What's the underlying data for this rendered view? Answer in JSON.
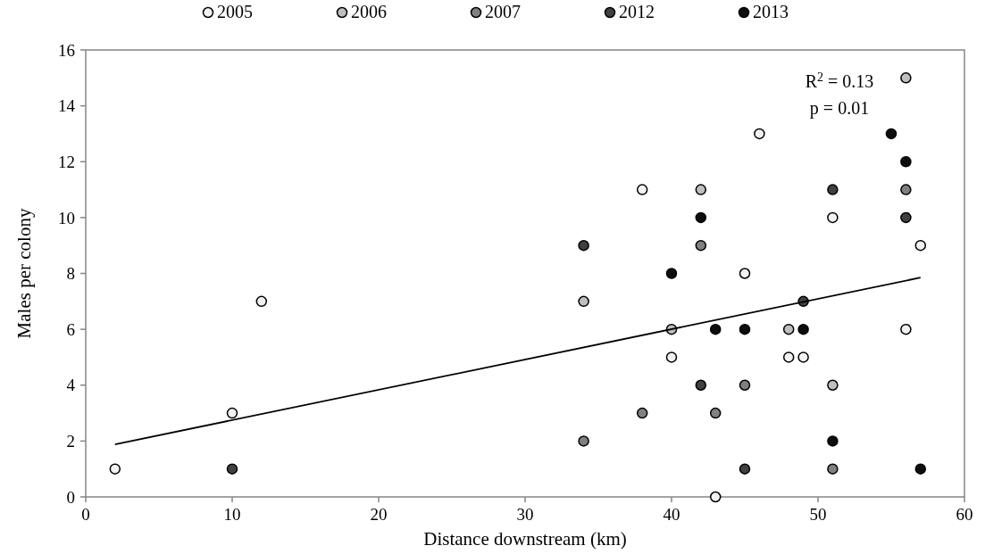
{
  "chart_data": {
    "type": "scatter",
    "xlabel": "Distance downstream (km)",
    "ylabel": "Males per colony",
    "xlim": [
      0,
      60
    ],
    "xticks": [
      0,
      10,
      20,
      30,
      40,
      50,
      60
    ],
    "ylim": [
      0,
      16
    ],
    "yticks": [
      0,
      2,
      4,
      6,
      8,
      10,
      12,
      14,
      16
    ],
    "grid": false,
    "legend": "top",
    "marker": "circle",
    "annotations": [
      "R$^{2}$ = 0.13",
      "p  = 0.01"
    ],
    "series": [
      {
        "name": "2005",
        "color": "#f2f2f2",
        "x": [
          2,
          10,
          12,
          38,
          40,
          43,
          45,
          46,
          48,
          49,
          51,
          56,
          57
        ],
        "values": [
          1,
          3,
          7,
          11,
          5,
          0,
          8,
          13,
          5,
          5,
          10,
          6,
          9
        ]
      },
      {
        "name": "2006",
        "color": "#bfbfbf",
        "x": [
          34,
          40,
          42,
          48,
          51,
          56
        ],
        "values": [
          7,
          6,
          11,
          6,
          4,
          15
        ]
      },
      {
        "name": "2007",
        "color": "#808080",
        "x": [
          34,
          38,
          42,
          43,
          45,
          51,
          56
        ],
        "values": [
          2,
          3,
          9,
          3,
          4,
          1,
          11
        ]
      },
      {
        "name": "2012",
        "color": "#404040",
        "x": [
          10,
          34,
          42,
          45,
          49,
          51,
          56
        ],
        "values": [
          1,
          9,
          4,
          1,
          7,
          11,
          10
        ]
      },
      {
        "name": "2013",
        "color": "#0d0d0d",
        "x": [
          40,
          42,
          43,
          45,
          49,
          51,
          55,
          56,
          57
        ],
        "values": [
          8,
          10,
          6,
          6,
          6,
          2,
          13,
          12,
          1
        ]
      },
      {
        "type": "line",
        "color": "#000000",
        "x": [
          2,
          57
        ],
        "values": [
          1.88,
          7.85
        ],
        "marker": "none"
      }
    ]
  }
}
